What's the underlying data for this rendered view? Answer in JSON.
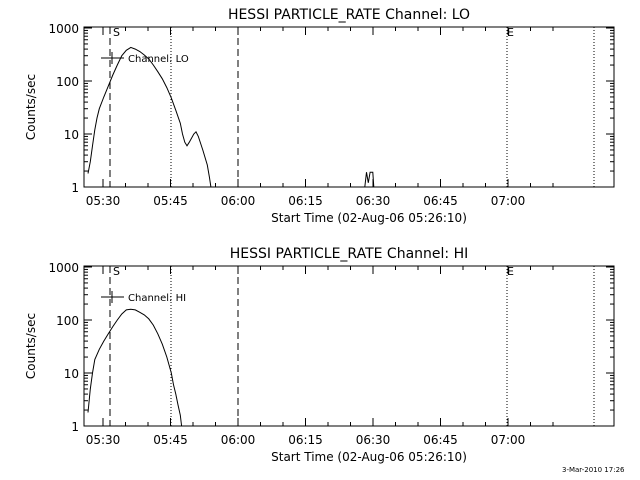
{
  "chart_data": [
    {
      "type": "line",
      "title": "HESSI PARTICLE_RATE Channel: LO",
      "xlabel": "Start Time (02-Aug-06 05:26:10)",
      "ylabel": "Counts/sec",
      "yscale": "log",
      "xlim_minutes": [
        0,
        60
      ],
      "x_ticks": [
        "05:30",
        "05:45",
        "06:00",
        "06:15",
        "06:30",
        "06:45",
        "07:00"
      ],
      "y_ticks": [
        "1",
        "10",
        "100",
        "1000"
      ],
      "ylim": [
        1,
        1000
      ],
      "markers": {
        "S": "S",
        "E": "E"
      },
      "legend": {
        "label": "Channel: LO",
        "position": "top-left"
      },
      "series": [
        {
          "name": "Channel: LO",
          "color": "#000000",
          "points": [
            [
              0.5,
              1.8
            ],
            [
              1.0,
              3
            ],
            [
              1.5,
              6
            ],
            [
              2.0,
              12
            ],
            [
              2.5,
              20
            ],
            [
              3.0,
              30
            ],
            [
              4.0,
              50
            ],
            [
              5.0,
              80
            ],
            [
              6.0,
              130
            ],
            [
              7.0,
              200
            ],
            [
              8.0,
              300
            ],
            [
              9.0,
              380
            ],
            [
              10.0,
              430
            ],
            [
              11.0,
              400
            ],
            [
              12.0,
              360
            ],
            [
              13.0,
              310
            ],
            [
              14.0,
              260
            ],
            [
              15.0,
              200
            ],
            [
              16.0,
              150
            ],
            [
              17.0,
              110
            ],
            [
              18.0,
              75
            ],
            [
              19.0,
              48
            ],
            [
              20.0,
              28
            ],
            [
              21.0,
              16
            ],
            [
              21.5,
              10
            ],
            [
              22.0,
              7
            ],
            [
              22.5,
              6
            ],
            [
              23.0,
              7
            ],
            [
              24.0,
              10
            ],
            [
              24.5,
              11
            ],
            [
              25.0,
              9
            ],
            [
              26.0,
              5
            ],
            [
              27.0,
              2.6
            ],
            [
              27.5,
              1.5
            ],
            [
              27.8,
              1.0
            ]
          ],
          "blip": [
            [
              62.0,
              1.0
            ],
            [
              62.4,
              1.9
            ],
            [
              62.8,
              1.2
            ],
            [
              63.2,
              1.9
            ],
            [
              63.8,
              1.9
            ],
            [
              64.0,
              1.0
            ]
          ]
        }
      ]
    },
    {
      "type": "line",
      "title": "HESSI PARTICLE_RATE Channel: HI",
      "xlabel": "Start Time (02-Aug-06 05:26:10)",
      "ylabel": "Counts/sec",
      "yscale": "log",
      "x_ticks": [
        "05:30",
        "05:45",
        "06:00",
        "06:15",
        "06:30",
        "06:45",
        "07:00"
      ],
      "y_ticks": [
        "1",
        "10",
        "100",
        "1000"
      ],
      "ylim": [
        1,
        1000
      ],
      "markers": {
        "S": "S",
        "E": "E"
      },
      "legend": {
        "label": "Channel: HI",
        "position": "top-left"
      },
      "series": [
        {
          "name": "Channel: HI",
          "color": "#000000",
          "points": [
            [
              0.5,
              1.8
            ],
            [
              1.0,
              5
            ],
            [
              1.5,
              10
            ],
            [
              2.0,
              18
            ],
            [
              3.0,
              28
            ],
            [
              4.0,
              40
            ],
            [
              5.0,
              55
            ],
            [
              6.0,
              75
            ],
            [
              7.0,
              100
            ],
            [
              8.0,
              130
            ],
            [
              9.0,
              155
            ],
            [
              10.0,
              160
            ],
            [
              11.0,
              155
            ],
            [
              12.0,
              140
            ],
            [
              13.0,
              125
            ],
            [
              14.0,
              105
            ],
            [
              15.0,
              80
            ],
            [
              16.0,
              55
            ],
            [
              17.0,
              35
            ],
            [
              18.0,
              20
            ],
            [
              19.0,
              10
            ],
            [
              19.5,
              6
            ],
            [
              20.0,
              4
            ],
            [
              20.5,
              2.5
            ],
            [
              21.0,
              1.6
            ],
            [
              21.3,
              1.0
            ]
          ]
        }
      ]
    }
  ],
  "footer": {
    "timestamp": "3-Mar-2010 17:26"
  }
}
